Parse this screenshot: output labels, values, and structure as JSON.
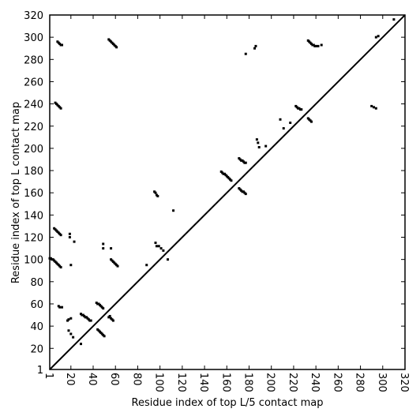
{
  "chart_data": {
    "type": "scatter",
    "xlabel": "Residue index of top L/5 contact map",
    "ylabel": "Residue index of top L contact map",
    "color": "#000000",
    "xlim": [
      1,
      320
    ],
    "ylim": [
      1,
      320
    ],
    "xticks": [
      1,
      20,
      40,
      60,
      80,
      100,
      120,
      140,
      160,
      180,
      200,
      220,
      240,
      260,
      280,
      300,
      320
    ],
    "yticks": [
      1,
      20,
      40,
      60,
      80,
      100,
      120,
      140,
      160,
      180,
      200,
      220,
      240,
      260,
      280,
      300,
      320
    ],
    "x": [
      8,
      9,
      10,
      11,
      12,
      6,
      7,
      8,
      9,
      10,
      11,
      5,
      6,
      7,
      8,
      9,
      10,
      11,
      1,
      2,
      3,
      4,
      5,
      6,
      7,
      8,
      9,
      10,
      11,
      9,
      10,
      12,
      17,
      18,
      20,
      19,
      19,
      23,
      20,
      18,
      20,
      22,
      29,
      29,
      30,
      31,
      32,
      33,
      34,
      35,
      36,
      37,
      38,
      43,
      44,
      45,
      46,
      47,
      48,
      49,
      44,
      45,
      46,
      47,
      48,
      49,
      50,
      54,
      55,
      56,
      57,
      58,
      56,
      57,
      58,
      59,
      60,
      61,
      62,
      54,
      55,
      56,
      57,
      58,
      59,
      60,
      61,
      49,
      49,
      56,
      95,
      96,
      97,
      98,
      96,
      97,
      99,
      101,
      103,
      107,
      112,
      88,
      155,
      156,
      157,
      158,
      159,
      160,
      161,
      162,
      163,
      164,
      171,
      172,
      173,
      174,
      175,
      176,
      177,
      171,
      172,
      173,
      174,
      175,
      176,
      177,
      177,
      185,
      186,
      187,
      188,
      189,
      195,
      208,
      211,
      217,
      222,
      223,
      224,
      225,
      226,
      227,
      233,
      234,
      235,
      236,
      233,
      234,
      235,
      236,
      237,
      238,
      239,
      240,
      242,
      245,
      290,
      292,
      294,
      294,
      296,
      310
    ],
    "y": [
      296,
      295,
      294,
      293,
      293,
      241,
      240,
      239,
      238,
      237,
      236,
      128,
      127,
      126,
      125,
      124,
      123,
      122,
      101,
      101,
      100,
      100,
      99,
      98,
      97,
      96,
      95,
      94,
      93,
      58,
      57,
      57,
      45,
      46,
      47,
      123,
      120,
      116,
      95,
      36,
      33,
      30,
      24,
      51,
      50,
      50,
      49,
      48,
      48,
      47,
      46,
      45,
      45,
      61,
      60,
      60,
      59,
      58,
      57,
      56,
      37,
      36,
      35,
      34,
      33,
      32,
      31,
      48,
      49,
      47,
      46,
      45,
      100,
      99,
      98,
      97,
      96,
      95,
      94,
      298,
      297,
      296,
      295,
      294,
      293,
      292,
      291,
      114,
      110,
      110,
      161,
      160,
      158,
      157,
      115,
      112,
      112,
      110,
      108,
      100,
      144,
      95,
      179,
      178,
      177,
      177,
      176,
      175,
      174,
      173,
      172,
      171,
      191,
      190,
      189,
      189,
      188,
      187,
      187,
      164,
      163,
      162,
      161,
      161,
      160,
      159,
      285,
      290,
      292,
      208,
      205,
      201,
      202,
      226,
      218,
      223,
      238,
      237,
      236,
      236,
      235,
      235,
      227,
      226,
      225,
      224,
      297,
      296,
      295,
      294,
      293,
      293,
      292,
      292,
      292,
      293,
      238,
      237,
      236,
      300,
      301,
      316
    ]
  }
}
